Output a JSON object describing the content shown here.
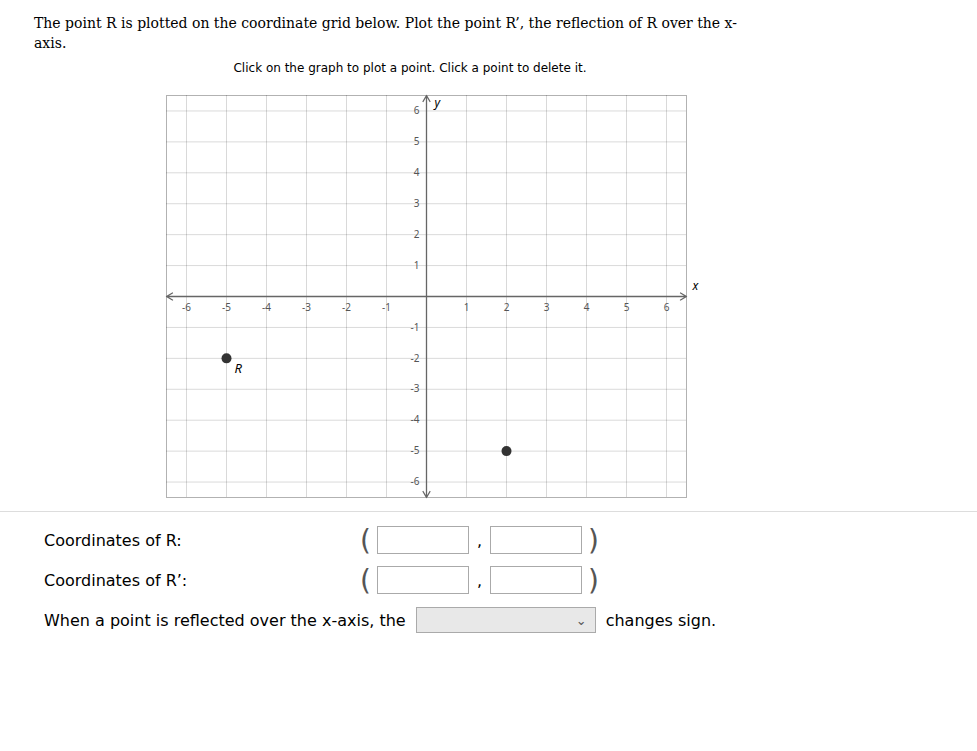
{
  "chart_data": {
    "type": "scatter",
    "title": "The point R is plotted on the coordinate grid below. Plot the point R’, the reflection of R over the x-\naxis.",
    "subtitle": "Click on the graph to plot a point. Click a point to delete it.",
    "x_label": "x",
    "y_label": "y",
    "x": [
      -5,
      2
    ],
    "values": [
      -2,
      -5
    ],
    "color": "#333333",
    "xlim": [
      -6.5,
      6.5
    ],
    "ylim": [
      -6.5,
      6.5
    ],
    "xticks": [
      -6,
      -5,
      -4,
      -3,
      -2,
      -1,
      1,
      2,
      3,
      4,
      5,
      6
    ],
    "yticks": [
      -6,
      -5,
      -4,
      -3,
      -2,
      -1,
      1,
      2,
      3,
      4,
      5,
      6
    ],
    "grid": true,
    "annotations": [
      {
        "text": "R",
        "x": -5,
        "y": -2
      },
      {
        "text": "Coordinates of R:"
      },
      {
        "text": "Coordinates of R’:"
      },
      {
        "text": "When a point is reflected over the x-axis, the"
      },
      {
        "text": "changes sign."
      },
      {
        "text": "("
      },
      {
        "text": ","
      },
      {
        "text": ")"
      },
      {
        "text": "⌄"
      }
    ]
  }
}
